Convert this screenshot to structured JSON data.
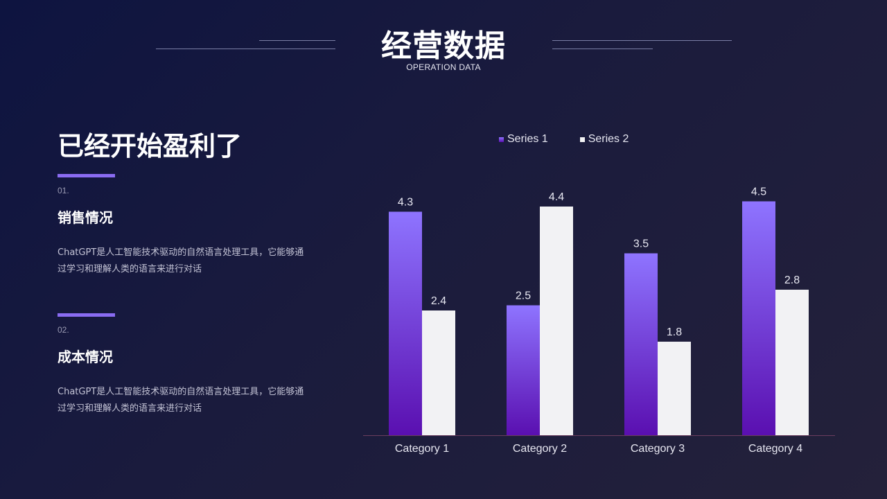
{
  "header": {
    "title": "经营数据",
    "subtitle": "OPERATION DATA"
  },
  "left": {
    "headline": "已经开始盈利了",
    "items": [
      {
        "num": "01.",
        "title": "销售情况",
        "desc": "ChatGPT是人工智能技术驱动的自然语言处理工具，它能够通过学习和理解人类的语言来进行对话"
      },
      {
        "num": "02.",
        "title": "成本情况",
        "desc": "ChatGPT是人工智能技术驱动的自然语言处理工具，它能够通过学习和理解人类的语言来进行对话"
      }
    ]
  },
  "colors": {
    "series1_top": "#8e74ff",
    "series1_bottom": "#5a0fb0",
    "series2": "#f2f2f4",
    "accent": "#8a6cf2",
    "axis": "#6b3d5e"
  },
  "chart_data": {
    "type": "bar",
    "categories": [
      "Category 1",
      "Category 2",
      "Category 3",
      "Category 4"
    ],
    "series": [
      {
        "name": "Series 1",
        "values": [
          4.3,
          2.5,
          3.5,
          4.5
        ]
      },
      {
        "name": "Series 2",
        "values": [
          2.4,
          4.4,
          1.8,
          2.8
        ]
      }
    ],
    "ylim": [
      0,
      5
    ],
    "grid": false,
    "legend": "top",
    "data_labels": true
  }
}
